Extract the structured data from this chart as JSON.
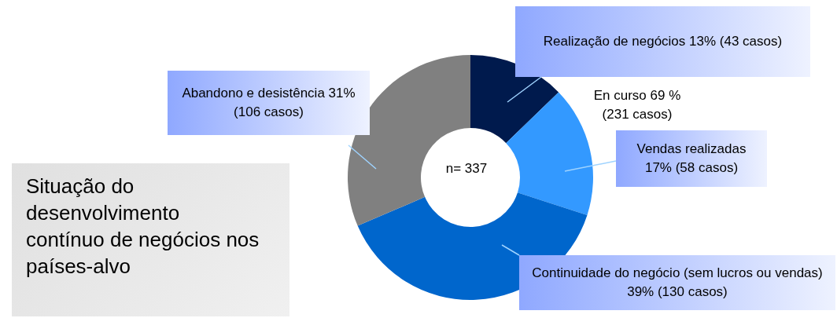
{
  "chart_data": {
    "type": "donut",
    "title": "Situação do desenvolvimento contínuo de negócios nos países-alvo",
    "categories": [
      "Realização de negócios",
      "Vendas realizadas",
      "Continuidade do negócio (sem lucros ou vendas)",
      "Abandono e desistência"
    ],
    "values": [
      43,
      58,
      130,
      106
    ],
    "colors": [
      "#001a4d",
      "#3399ff",
      "#0066cc",
      "#808080"
    ],
    "value_labels": [
      "13% (43 casos)",
      "17% (58 casos)",
      "39% (130 casos)",
      "31% (106 casos)"
    ],
    "annotations": [
      "n= 337",
      "En curso 69 % (231 casos)"
    ]
  }
}
